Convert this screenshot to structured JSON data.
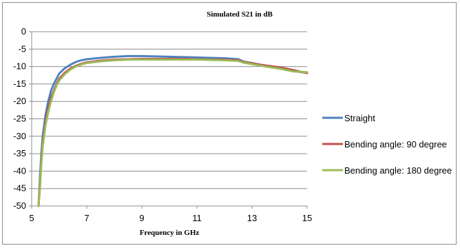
{
  "chart_data": {
    "type": "line",
    "title": "Simulated S21 in dB",
    "xlabel": "Frequency in GHz",
    "ylabel": "",
    "xlim": [
      5,
      15
    ],
    "ylim": [
      -50,
      0
    ],
    "x_ticks": [
      5,
      7,
      9,
      11,
      13,
      15
    ],
    "y_ticks": [
      0,
      -5,
      -10,
      -15,
      -20,
      -25,
      -30,
      -35,
      -40,
      -45,
      -50
    ],
    "grid": "horizontal",
    "legend": "right",
    "series": [
      {
        "name": "Straight",
        "color": "#4f81bd",
        "x": [
          5.25,
          5.3,
          5.35,
          5.4,
          5.5,
          5.6,
          5.7,
          5.8,
          5.9,
          6.0,
          6.2,
          6.4,
          6.6,
          6.8,
          7.0,
          7.5,
          8.0,
          8.5,
          9.0,
          9.5,
          10.0,
          10.5,
          11.0,
          11.5,
          12.0,
          12.5,
          12.7,
          13.0,
          13.5,
          14.0,
          14.5,
          15.0
        ],
        "y": [
          -50,
          -42,
          -35,
          -30,
          -24,
          -20,
          -17,
          -15,
          -13.5,
          -12,
          -10.5,
          -9.5,
          -8.7,
          -8.2,
          -7.9,
          -7.5,
          -7.2,
          -7.0,
          -7.0,
          -7.1,
          -7.2,
          -7.3,
          -7.4,
          -7.5,
          -7.6,
          -7.9,
          -8.6,
          -9.0,
          -9.8,
          -10.5,
          -11.3,
          -11.8
        ]
      },
      {
        "name": "Bending angle: 90 degree",
        "color": "#c0504d",
        "x": [
          5.25,
          5.3,
          5.35,
          5.4,
          5.5,
          5.6,
          5.7,
          5.8,
          5.9,
          6.0,
          6.2,
          6.4,
          6.6,
          6.8,
          7.0,
          7.5,
          8.0,
          8.5,
          9.0,
          9.5,
          10.0,
          10.5,
          11.0,
          11.5,
          12.0,
          12.5,
          12.7,
          13.0,
          13.5,
          14.0,
          14.5,
          15.0
        ],
        "y": [
          -50,
          -44,
          -37,
          -32,
          -26,
          -22,
          -19,
          -17,
          -15,
          -13.5,
          -11.8,
          -10.6,
          -9.8,
          -9.2,
          -8.8,
          -8.3,
          -8.0,
          -7.9,
          -7.8,
          -7.8,
          -7.8,
          -7.8,
          -7.9,
          -8.0,
          -8.0,
          -8.2,
          -8.7,
          -9.1,
          -9.7,
          -10.2,
          -11.0,
          -11.9
        ]
      },
      {
        "name": "Bending angle: 180 degree",
        "color": "#9bbb59",
        "x": [
          5.25,
          5.3,
          5.35,
          5.4,
          5.5,
          5.6,
          5.7,
          5.8,
          5.9,
          6.0,
          6.2,
          6.4,
          6.6,
          6.8,
          7.0,
          7.5,
          8.0,
          8.5,
          9.0,
          9.5,
          10.0,
          10.5,
          11.0,
          11.5,
          12.0,
          12.5,
          12.7,
          13.0,
          13.5,
          14.0,
          14.5,
          15.0
        ],
        "y": [
          -50,
          -45,
          -38,
          -33,
          -27,
          -23,
          -20,
          -17.5,
          -15.5,
          -14,
          -12.2,
          -10.9,
          -10.0,
          -9.4,
          -9.0,
          -8.5,
          -8.2,
          -8.0,
          -8.0,
          -8.0,
          -8.0,
          -8.0,
          -8.0,
          -8.1,
          -8.2,
          -8.4,
          -8.9,
          -9.3,
          -10.0,
          -10.6,
          -11.4,
          -11.6
        ]
      }
    ]
  }
}
